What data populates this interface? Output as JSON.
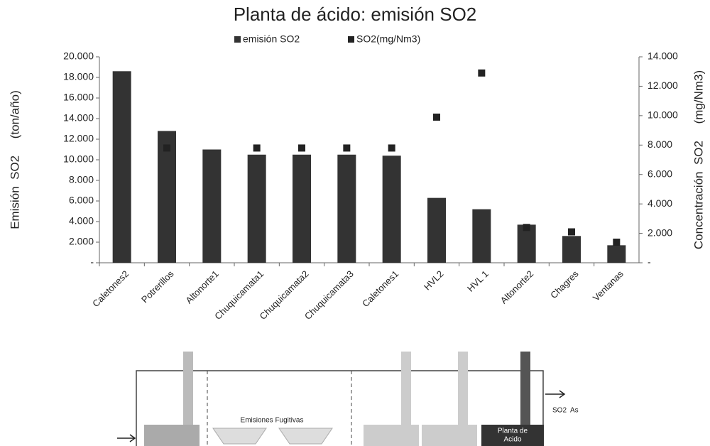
{
  "chart_data": {
    "type": "bar",
    "title": "Planta de ácido: emisión SO2",
    "ylabel": "Emisión  SO2     (ton/año)",
    "y2label": "Concentración  SO2     (mg/Nm3)",
    "categories": [
      "Caletones2",
      "Potrerillos",
      "Altonorte1",
      "Chuquicamata1",
      "Chuquicamata2",
      "Chuquicamata3",
      "Caletones1",
      "HVL2",
      "HVL 1",
      "Altonorte2",
      "Chagres",
      "Ventanas"
    ],
    "series": [
      {
        "name": "emisión SO2",
        "type": "bar",
        "color": "#333333",
        "values": [
          18600,
          12800,
          11000,
          10500,
          10500,
          10500,
          10400,
          6300,
          5200,
          3700,
          2600,
          1700
        ]
      },
      {
        "name": "SO2(mg/Nm3)",
        "type": "scatter",
        "axis": "y2",
        "color": "#222222",
        "values": [
          null,
          7800,
          null,
          7800,
          7800,
          7800,
          7800,
          9900,
          12900,
          2400,
          2100,
          1400
        ]
      }
    ],
    "ylim": [
      0,
      20000
    ],
    "yticks": [
      {
        "value": 0,
        "label": "-"
      },
      {
        "value": 2000,
        "label": "2.000"
      },
      {
        "value": 4000,
        "label": "4.000"
      },
      {
        "value": 6000,
        "label": "6.000"
      },
      {
        "value": 8000,
        "label": "8.000"
      },
      {
        "value": 10000,
        "label": "10.000"
      },
      {
        "value": 12000,
        "label": "12.000"
      },
      {
        "value": 14000,
        "label": "14.000"
      },
      {
        "value": 16000,
        "label": "16.000"
      },
      {
        "value": 18000,
        "label": "18.000"
      },
      {
        "value": 20000,
        "label": "20.000"
      }
    ],
    "y2lim": [
      0,
      14000
    ],
    "y2ticks": [
      {
        "value": 0,
        "label": "-"
      },
      {
        "value": 2000,
        "label": "2.000"
      },
      {
        "value": 4000,
        "label": "4.000"
      },
      {
        "value": 6000,
        "label": "6.000"
      },
      {
        "value": 8000,
        "label": "8.000"
      },
      {
        "value": 10000,
        "label": "10.000"
      },
      {
        "value": 12000,
        "label": "12.000"
      },
      {
        "value": 14000,
        "label": "14.000"
      }
    ],
    "grid": false,
    "legend": "top"
  },
  "diagram": {
    "fugitive_label": "Emisiones Fugitivas",
    "plant_label": [
      "Planta de",
      "Acido"
    ],
    "output_label": "SO2  As"
  }
}
